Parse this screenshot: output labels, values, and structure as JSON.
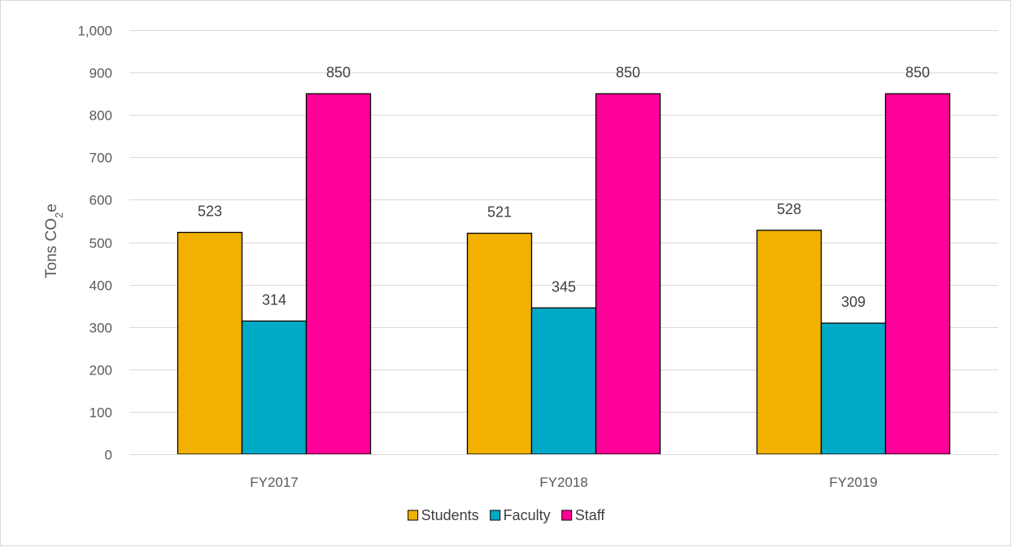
{
  "chart_data": {
    "type": "bar",
    "categories": [
      "FY2017",
      "FY2018",
      "FY2019"
    ],
    "series": [
      {
        "name": "Students",
        "values": [
          523,
          521,
          528
        ],
        "color": "#f2b100"
      },
      {
        "name": "Faculty",
        "values": [
          314,
          345,
          309
        ],
        "color": "#00a9c6"
      },
      {
        "name": "Staff",
        "values": [
          850,
          850,
          850
        ],
        "color": "#ff0099"
      }
    ],
    "ylabel": {
      "main": "Tons CO",
      "sub": "2",
      "suffix": "e"
    },
    "ylim": [
      0,
      1000
    ],
    "yticks": [
      0,
      100,
      200,
      300,
      400,
      500,
      600,
      700,
      800,
      900,
      1000
    ],
    "ytick_labels": [
      "0",
      "100",
      "200",
      "300",
      "400",
      "500",
      "600",
      "700",
      "800",
      "900",
      "1,000"
    ],
    "grid": true,
    "legend": "bottom",
    "data_labels": true
  }
}
